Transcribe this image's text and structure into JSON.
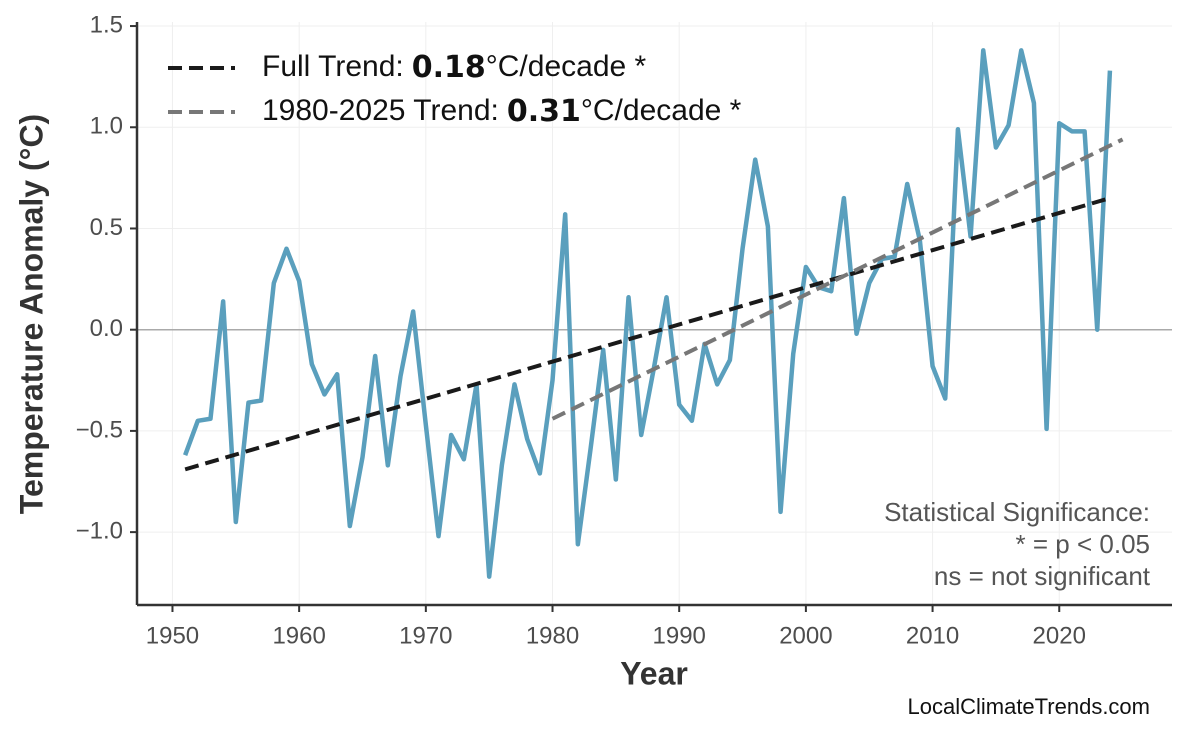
{
  "chart_data": {
    "type": "line",
    "xlabel": "Year",
    "ylabel": "Temperature Anomaly (°C)",
    "x": [
      1951,
      1952,
      1953,
      1954,
      1955,
      1956,
      1957,
      1958,
      1959,
      1960,
      1961,
      1962,
      1963,
      1964,
      1965,
      1966,
      1967,
      1968,
      1969,
      1970,
      1971,
      1972,
      1973,
      1974,
      1975,
      1976,
      1977,
      1978,
      1979,
      1980,
      1981,
      1982,
      1983,
      1984,
      1985,
      1986,
      1987,
      1988,
      1989,
      1990,
      1991,
      1992,
      1993,
      1994,
      1995,
      1996,
      1997,
      1998,
      1999,
      2000,
      2001,
      2002,
      2003,
      2004,
      2005,
      2006,
      2007,
      2008,
      2009,
      2010,
      2011,
      2012,
      2013,
      2014,
      2015,
      2016,
      2017,
      2018,
      2019,
      2020,
      2021,
      2022,
      2023,
      2024
    ],
    "series": [
      {
        "color": "#5a9fbd",
        "values": [
          -0.62,
          -0.45,
          -0.44,
          0.14,
          -0.95,
          -0.36,
          -0.35,
          0.23,
          0.4,
          0.24,
          -0.17,
          -0.32,
          -0.22,
          -0.97,
          -0.63,
          -0.13,
          -0.67,
          -0.23,
          0.09,
          -0.47,
          -1.02,
          -0.52,
          -0.64,
          -0.27,
          -1.22,
          -0.67,
          -0.27,
          -0.54,
          -0.71,
          -0.25,
          0.57,
          -1.06,
          -0.59,
          -0.1,
          -0.74,
          0.16,
          -0.52,
          -0.19,
          0.16,
          -0.37,
          -0.45,
          -0.07,
          -0.27,
          -0.15,
          0.4,
          0.84,
          0.51,
          -0.9,
          -0.12,
          0.31,
          0.21,
          0.19,
          0.65,
          -0.02,
          0.23,
          0.35,
          0.36,
          0.72,
          0.44,
          -0.18,
          -0.34,
          0.99,
          0.46,
          1.38,
          0.9,
          1.01,
          1.38,
          1.12,
          -0.49,
          1.02,
          0.98,
          0.98,
          0.0,
          1.28
        ]
      }
    ],
    "trends": [
      {
        "label": "Full Trend:",
        "rate": 0.18,
        "suffix": "°C/decade *",
        "color": "#1a1a1a",
        "x": [
          1951,
          2024
        ],
        "values": [
          -0.69,
          0.65
        ]
      },
      {
        "label": "1980-2025 Trend:",
        "rate": 0.31,
        "suffix": "°C/decade *",
        "color": "#777777",
        "x": [
          1980,
          2025
        ],
        "values": [
          -0.44,
          0.94
        ]
      }
    ],
    "reference_line": 0,
    "annotation": [
      "Statistical Significance:",
      "* = p < 0.05",
      "ns = not significant"
    ],
    "source": "LocalClimateTrends.com",
    "xlim": [
      1947.2,
      2028.9
    ],
    "ylim": [
      -1.36,
      1.52
    ],
    "xticks": [
      1950,
      1960,
      1970,
      1980,
      1990,
      2000,
      2010,
      2020
    ],
    "yticks": [
      {
        "value": -1.0,
        "label": "−1.0"
      },
      {
        "value": -0.5,
        "label": "−0.5"
      },
      {
        "value": 0.0,
        "label": "0.0"
      },
      0.5,
      {
        "value": 1.0,
        "label": "1.0"
      },
      1.5
    ],
    "grid": true
  }
}
